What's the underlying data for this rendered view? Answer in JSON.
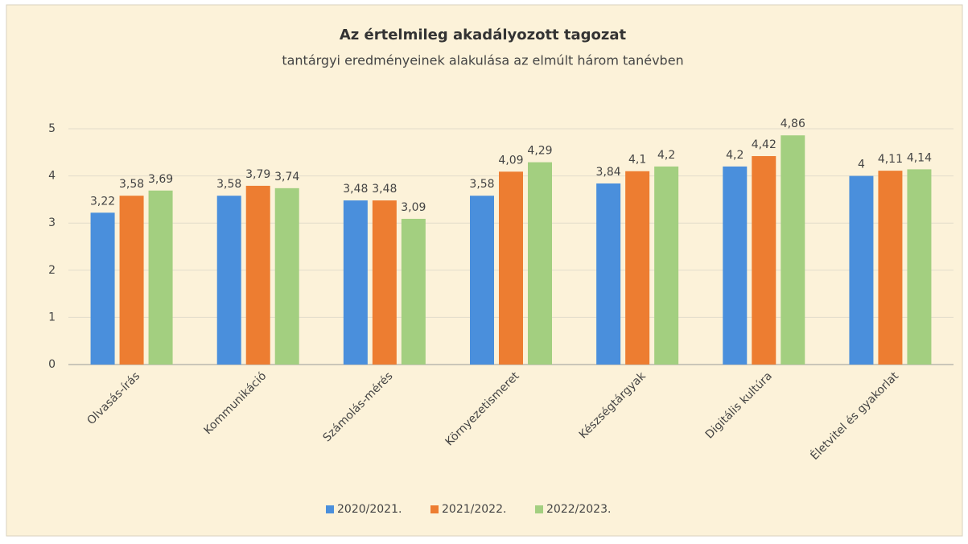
{
  "chart_data": {
    "type": "bar",
    "title": "Az értelmileg akadályozott tagozat",
    "subtitle": "tantárgyi eredményeinek alakulása az elmúlt három tanévben",
    "categories": [
      "Olvasás-írás",
      "Kommunikáció",
      "Számolás-mérés",
      "Környezetismeret",
      "Készségtárgyak",
      "Digitális kultúra",
      "Életvitel és gyakorlat"
    ],
    "series": [
      {
        "name": "2020/2021.",
        "color": "#4a8fdc",
        "values": [
          3.22,
          3.58,
          3.48,
          3.58,
          3.84,
          4.2,
          4
        ],
        "value_labels": [
          "3,22",
          "3,58",
          "3,48",
          "3,58",
          "3,84",
          "4,2",
          "4"
        ]
      },
      {
        "name": "2021/2022.",
        "color": "#ed7d31",
        "values": [
          3.58,
          3.79,
          3.48,
          4.09,
          4.1,
          4.42,
          4.11
        ],
        "value_labels": [
          "3,58",
          "3,79",
          "3,48",
          "4,09",
          "4,1",
          "4,42",
          "4,11"
        ]
      },
      {
        "name": "2022/2023.",
        "color": "#a3cf80",
        "values": [
          3.69,
          3.74,
          3.09,
          4.29,
          4.2,
          4.86,
          4.14
        ],
        "value_labels": [
          "3,69",
          "3,74",
          "3,09",
          "4,29",
          "4,2",
          "4,86",
          "4,14"
        ]
      }
    ],
    "ylim": [
      0,
      5
    ],
    "yticks": [
      0,
      1,
      2,
      3,
      4,
      5
    ],
    "grid": true,
    "legend": "bottom"
  }
}
